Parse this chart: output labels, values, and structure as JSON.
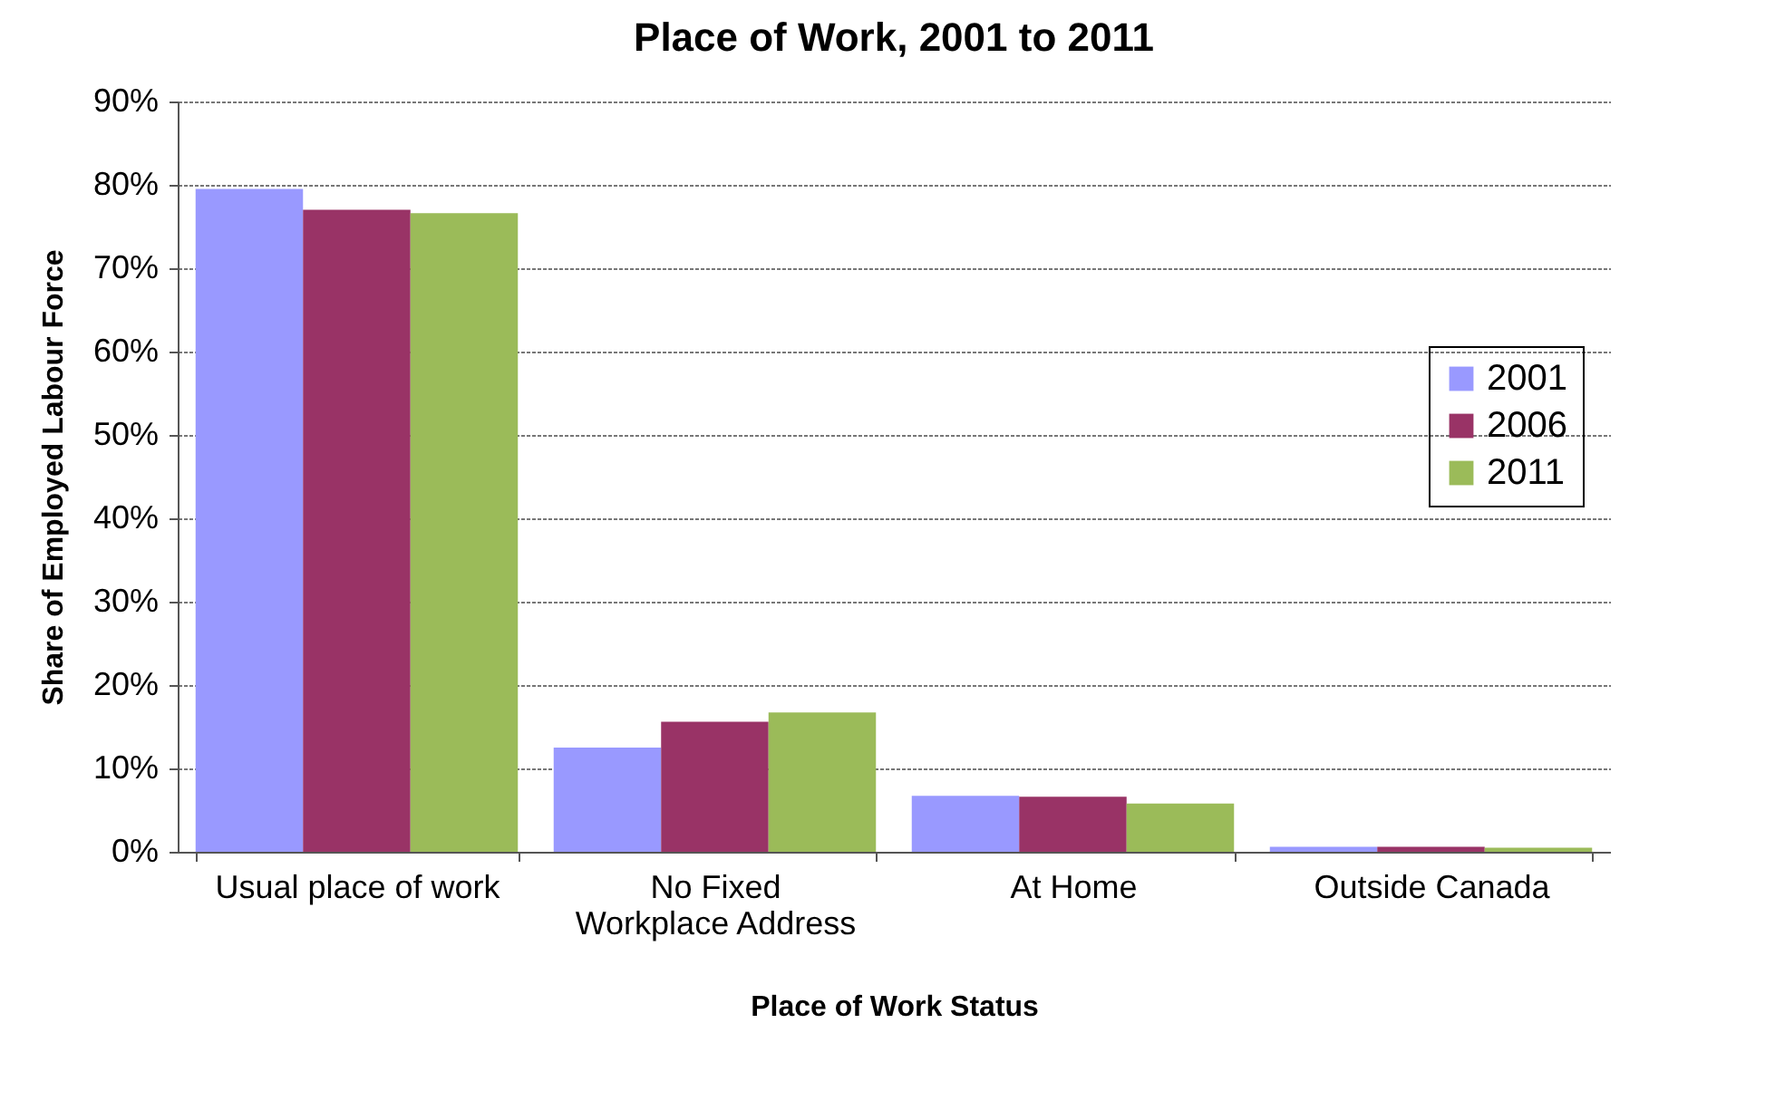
{
  "chart_data": {
    "type": "bar",
    "title": "Place of Work, 2001 to 2011",
    "xlabel": "Place of Work Status",
    "ylabel": "Share of Employed Labour Force",
    "categories": [
      "Usual place of work",
      "No Fixed Workplace Address",
      "At Home",
      "Outside Canada"
    ],
    "series": [
      {
        "name": "2001",
        "color": "#9999ff",
        "values": [
          79.5,
          12.5,
          6.7,
          0.6
        ]
      },
      {
        "name": "2006",
        "color": "#993366",
        "values": [
          77.0,
          15.6,
          6.6,
          0.6
        ]
      },
      {
        "name": "2011",
        "color": "#9bbb59",
        "values": [
          76.6,
          16.7,
          5.8,
          0.5
        ]
      }
    ],
    "ylim": [
      0,
      90
    ],
    "yticks": [
      {
        "value": 0,
        "label": "0%"
      },
      {
        "value": 10,
        "label": "10%"
      },
      {
        "value": 20,
        "label": "20%"
      },
      {
        "value": 30,
        "label": "30%"
      },
      {
        "value": 40,
        "label": "40%"
      },
      {
        "value": 50,
        "label": "50%"
      },
      {
        "value": 60,
        "label": "60%"
      },
      {
        "value": 70,
        "label": "70%"
      },
      {
        "value": 80,
        "label": "80%"
      },
      {
        "value": 90,
        "label": "90%"
      }
    ],
    "grid": "y",
    "legend": "right"
  }
}
